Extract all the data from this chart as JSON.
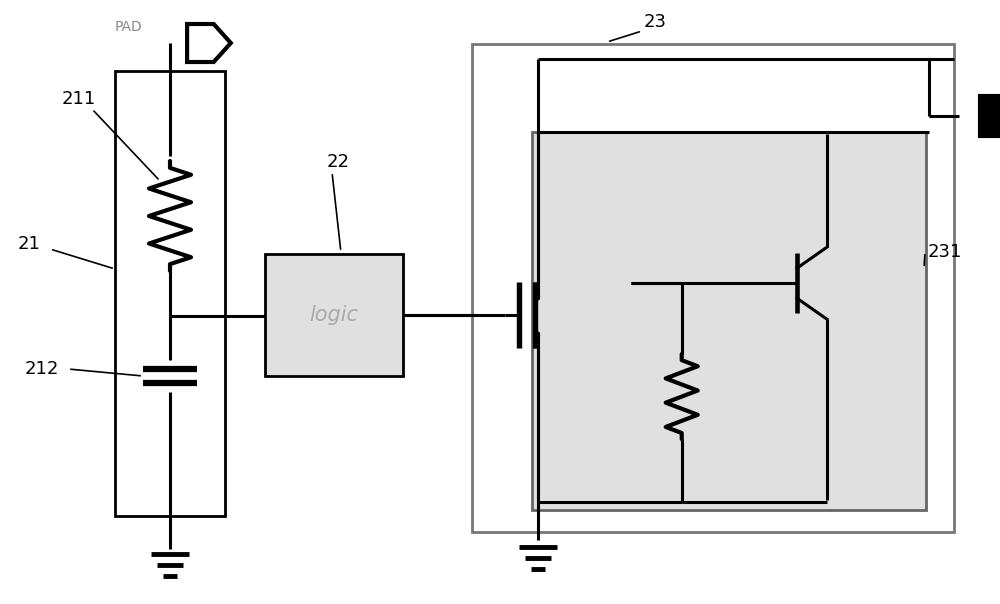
{
  "bg_color": "#ffffff",
  "line_color": "#000000",
  "box_fill_light": "#e0e0e0",
  "label_color": "#888888",
  "labels": {
    "pad": "PAD",
    "logic": "logic",
    "n21": "21",
    "n211": "211",
    "n212": "212",
    "n22": "22",
    "n23": "23",
    "n231": "231"
  },
  "figsize": [
    10.0,
    6.04
  ],
  "dpi": 100
}
